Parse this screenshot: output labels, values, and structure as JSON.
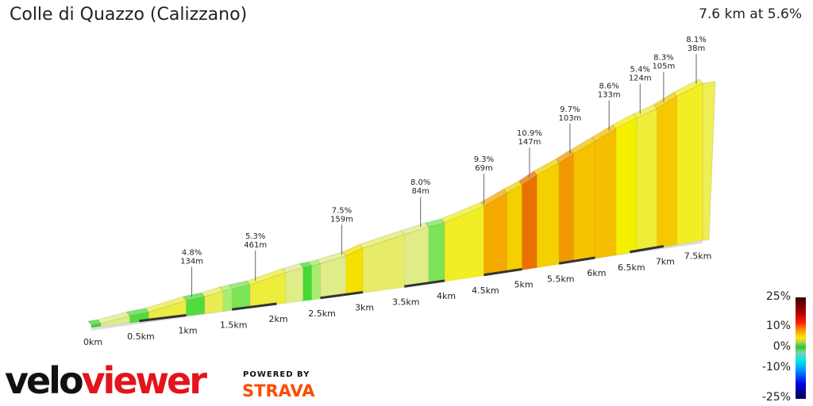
{
  "header": {
    "title": "Colle di Quazzo (Calizzano)",
    "summary": "7.6 km at 5.6%"
  },
  "chart_data": {
    "type": "area",
    "title": "Colle di Quazzo (Calizzano)",
    "total_distance_km": 7.6,
    "average_gradient_pct": 5.6,
    "x_tick_labels": [
      "0km",
      "0.5km",
      "1km",
      "1.5km",
      "2km",
      "2.5km",
      "3km",
      "3.5km",
      "4km",
      "4.5km",
      "5km",
      "5.5km",
      "6km",
      "6.5km",
      "7km",
      "7.5km"
    ],
    "x_ticks_km": [
      0,
      0.5,
      1,
      1.5,
      2,
      2.5,
      3,
      3.5,
      4,
      4.5,
      5,
      5.5,
      6,
      6.5,
      7,
      7.5
    ],
    "segments": [
      {
        "from": 0,
        "to": 0.1,
        "gradient": 1
      },
      {
        "from": 0.1,
        "to": 0.4,
        "gradient": 4
      },
      {
        "from": 0.4,
        "to": 0.6,
        "gradient": 2
      },
      {
        "from": 0.6,
        "to": 1.0,
        "gradient": 5
      },
      {
        "from": 1.0,
        "to": 1.2,
        "gradient": 2
      },
      {
        "from": 1.2,
        "to": 1.4,
        "gradient": 4.8
      },
      {
        "from": 1.4,
        "to": 1.5,
        "gradient": 3
      },
      {
        "from": 1.5,
        "to": 1.7,
        "gradient": 2.5
      },
      {
        "from": 1.7,
        "to": 2.1,
        "gradient": 5.3
      },
      {
        "from": 2.1,
        "to": 2.3,
        "gradient": 4
      },
      {
        "from": 2.3,
        "to": 2.4,
        "gradient": 1.5
      },
      {
        "from": 2.4,
        "to": 2.5,
        "gradient": 3
      },
      {
        "from": 2.5,
        "to": 2.8,
        "gradient": 4
      },
      {
        "from": 2.8,
        "to": 3.0,
        "gradient": 7.5
      },
      {
        "from": 3.0,
        "to": 3.5,
        "gradient": 4.5
      },
      {
        "from": 3.5,
        "to": 3.8,
        "gradient": 4
      },
      {
        "from": 3.8,
        "to": 4.0,
        "gradient": 2.5
      },
      {
        "from": 4.0,
        "to": 4.5,
        "gradient": 6
      },
      {
        "from": 4.5,
        "to": 4.8,
        "gradient": 9.3
      },
      {
        "from": 4.8,
        "to": 5.0,
        "gradient": 8
      },
      {
        "from": 5.0,
        "to": 5.2,
        "gradient": 10.9
      },
      {
        "from": 5.2,
        "to": 5.5,
        "gradient": 8
      },
      {
        "from": 5.5,
        "to": 5.7,
        "gradient": 9.7
      },
      {
        "from": 5.7,
        "to": 6.0,
        "gradient": 8.5
      },
      {
        "from": 6.0,
        "to": 6.3,
        "gradient": 8.6
      },
      {
        "from": 6.3,
        "to": 6.6,
        "gradient": 7
      },
      {
        "from": 6.6,
        "to": 6.9,
        "gradient": 5.4
      },
      {
        "from": 6.9,
        "to": 7.2,
        "gradient": 8.3
      },
      {
        "from": 7.2,
        "to": 7.6,
        "gradient": 6
      }
    ],
    "annotations": [
      {
        "km": 1.06,
        "gradient": "4.8%",
        "length": "134m"
      },
      {
        "km": 1.76,
        "gradient": "5.3%",
        "length": "461m"
      },
      {
        "km": 2.75,
        "gradient": "7.5%",
        "length": "159m"
      },
      {
        "km": 3.7,
        "gradient": "8.0%",
        "length": "84m"
      },
      {
        "km": 4.5,
        "gradient": "9.3%",
        "length": "69m"
      },
      {
        "km": 5.1,
        "gradient": "10.9%",
        "length": "147m"
      },
      {
        "km": 5.65,
        "gradient": "9.7%",
        "length": "103m"
      },
      {
        "km": 6.2,
        "gradient": "8.6%",
        "length": "133m"
      },
      {
        "km": 6.65,
        "gradient": "5.4%",
        "length": "124m"
      },
      {
        "km": 7.0,
        "gradient": "8.3%",
        "length": "105m"
      },
      {
        "km": 7.5,
        "gradient": "8.1%",
        "length": "38m"
      }
    ],
    "legend": {
      "labels": [
        "25%",
        "10%",
        "0%",
        "-10%",
        "-25%"
      ]
    }
  },
  "branding": {
    "logo_left": "velo",
    "logo_right": "viewer",
    "powered_by": "POWERED BY",
    "strava": "STRAVA"
  },
  "colors": {
    "strava": "#fc4c02",
    "veloviewer_red": "#e3141b"
  }
}
